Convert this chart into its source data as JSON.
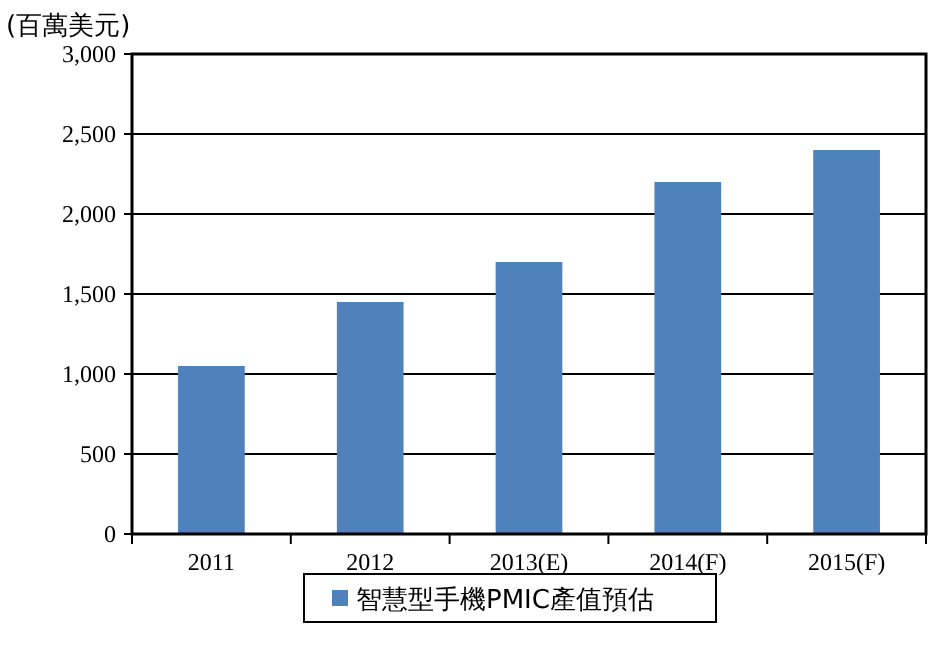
{
  "chart_data": {
    "type": "bar",
    "ylabel": "(百萬美元)",
    "categories": [
      "2011",
      "2012",
      "2013(E)",
      "2014(F)",
      "2015(F)"
    ],
    "series": [
      {
        "name": "智慧型手機PMIC產值預估",
        "color": "#4f81bd",
        "values": [
          1050,
          1450,
          1700,
          2200,
          2400
        ]
      }
    ],
    "ylim": [
      0,
      3000
    ],
    "yticks": [
      {
        "value": 0,
        "label": "0"
      },
      {
        "value": 500,
        "label": "500"
      },
      {
        "value": 1000,
        "label": "1,000"
      },
      {
        "value": 1500,
        "label": "1,500"
      },
      {
        "value": 2000,
        "label": "2,000"
      },
      {
        "value": 2500,
        "label": "2,500"
      },
      {
        "value": 3000,
        "label": "3,000"
      }
    ],
    "grid": "y",
    "legend": "bottom"
  }
}
